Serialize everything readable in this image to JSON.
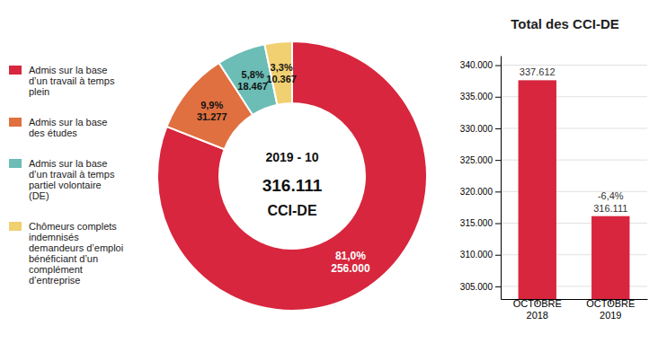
{
  "chart_data": [
    {
      "type": "donut",
      "categories": [
        "Admis sur la base\nd’un travail à temps\nplein",
        "Admis sur la base\ndes études",
        "Admis sur la base\nd’un travail à temps\npartiel volontaire\n(DE)",
        "Chômeurs complets\nindemnisés\ndemandeurs d’emploi\nbénéficiant d’un\ncomplément\nd’entreprise"
      ],
      "values": [
        256000,
        31277,
        18467,
        10367
      ],
      "value_labels": [
        "256.000",
        "31.277",
        "18.467",
        "10.367"
      ],
      "shares": [
        81.0,
        9.9,
        5.8,
        3.3
      ],
      "share_labels": [
        "81,0%",
        "9,9%",
        "5,8%",
        "3,3%"
      ],
      "colors": [
        "#D7263D",
        "#E07040",
        "#6BBDB5",
        "#F0D070"
      ],
      "annotations": [
        "2019 - 10",
        "316.111",
        "CCI-DE"
      ],
      "legend": "left",
      "data_labels": true
    },
    {
      "type": "bar",
      "title": "Total des CCI-DE",
      "categories": [
        "OCTOBRE\n2018",
        "OCTOBRE\n2019"
      ],
      "values": [
        337612,
        316111
      ],
      "value_labels": [
        "337.612",
        "316.111"
      ],
      "color": "#D7263D",
      "ylim": [
        303000,
        341500
      ],
      "yticks": [
        {
          "value": 305000,
          "label": "305.000"
        },
        {
          "value": 310000,
          "label": "310.000"
        },
        {
          "value": 315000,
          "label": "315.000"
        },
        {
          "value": 320000,
          "label": "320.000"
        },
        {
          "value": 325000,
          "label": "325.000"
        },
        {
          "value": 330000,
          "label": "330.000"
        },
        {
          "value": 335000,
          "label": "335.000"
        },
        {
          "value": 340000,
          "label": "340.000"
        }
      ],
      "grid": true,
      "data_labels": true,
      "annotations": [
        {
          "text": "-6,4%",
          "category": "OCTOBRE\n2019"
        }
      ]
    }
  ]
}
